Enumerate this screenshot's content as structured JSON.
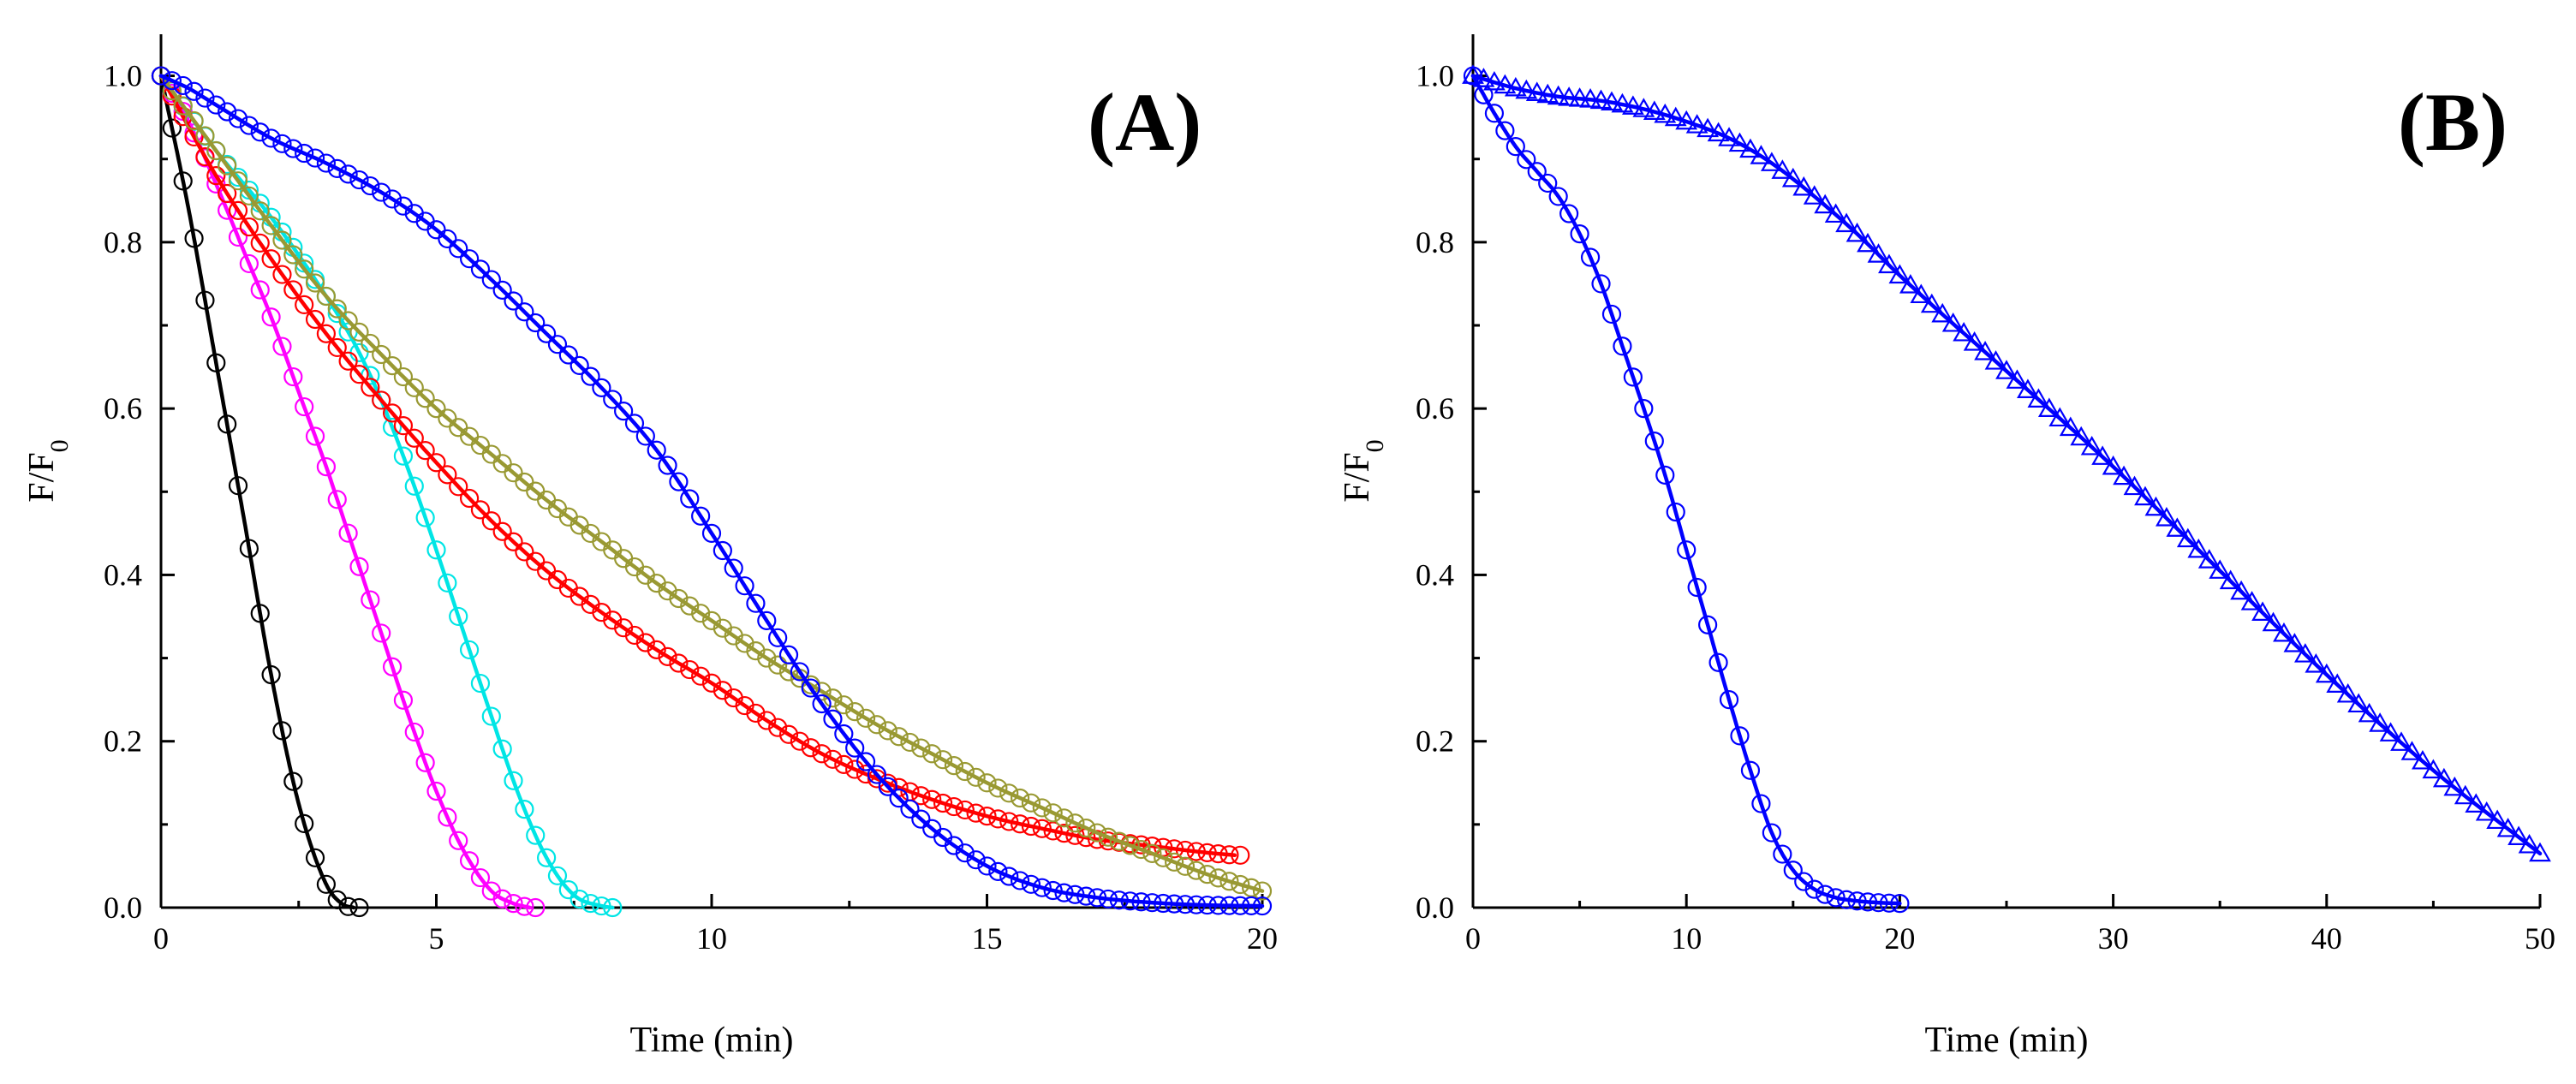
{
  "chart_data": [
    {
      "id": "A",
      "type": "scatter",
      "panel_label": "(A)",
      "title": "",
      "xlabel": "Time (min)",
      "ylabel": {
        "base": "F/F",
        "sub": "0"
      },
      "xlim": [
        0,
        20
      ],
      "ylim": [
        0,
        1.05
      ],
      "xticks": [
        0,
        5,
        10,
        15,
        20
      ],
      "yticks": [
        0.0,
        0.2,
        0.4,
        0.6,
        0.8,
        1.0
      ],
      "xtick_labels": [
        "0",
        "5",
        "10",
        "15",
        "20"
      ],
      "ytick_labels": [
        "0.0",
        "0.2",
        "0.4",
        "0.6",
        "0.8",
        "1.0"
      ],
      "grid": false,
      "legend": "none",
      "series": [
        {
          "name": "black",
          "color": "#000000",
          "marker": "circle",
          "step": 0.2,
          "x": [
            0,
            0.5,
            1,
            1.5,
            2,
            2.5,
            3,
            3.3,
            3.5
          ],
          "y": [
            1.0,
            0.84,
            0.655,
            0.47,
            0.28,
            0.125,
            0.028,
            0.004,
            0.0
          ]
        },
        {
          "name": "magenta",
          "color": "#ff00ff",
          "marker": "circle",
          "step": 0.2,
          "x": [
            0,
            0.5,
            1,
            1.5,
            2,
            2.5,
            3,
            3.5,
            4,
            4.5,
            5,
            5.5,
            6,
            6.4,
            6.7
          ],
          "y": [
            1.0,
            0.945,
            0.87,
            0.79,
            0.71,
            0.62,
            0.53,
            0.43,
            0.33,
            0.23,
            0.14,
            0.068,
            0.02,
            0.005,
            0.0
          ]
        },
        {
          "name": "cyan",
          "color": "#00e5e5",
          "marker": "circle",
          "step": 0.2,
          "x": [
            0,
            1,
            2,
            3,
            3.5,
            4,
            4.5,
            5,
            5.5,
            6,
            6.5,
            7,
            7.5,
            8,
            8.2
          ],
          "y": [
            1.0,
            0.91,
            0.83,
            0.735,
            0.68,
            0.61,
            0.525,
            0.43,
            0.33,
            0.23,
            0.135,
            0.06,
            0.015,
            0.002,
            0.0
          ]
        },
        {
          "name": "red",
          "color": "#ff0000",
          "marker": "circle",
          "step": 0.2,
          "x": [
            0,
            1,
            2,
            3,
            4,
            5,
            6,
            7,
            8,
            9,
            10,
            11,
            12,
            13,
            14,
            15,
            16,
            17,
            18,
            19,
            19.5
          ],
          "y": [
            1.0,
            0.88,
            0.78,
            0.69,
            0.61,
            0.535,
            0.465,
            0.405,
            0.355,
            0.31,
            0.27,
            0.225,
            0.185,
            0.155,
            0.13,
            0.11,
            0.095,
            0.082,
            0.074,
            0.066,
            0.063
          ]
        },
        {
          "name": "olive",
          "color": "#999933",
          "marker": "circle",
          "step": 0.2,
          "x": [
            0,
            1,
            2,
            3,
            4,
            5,
            6,
            7,
            8,
            9,
            10,
            11,
            12,
            13,
            14,
            15,
            16,
            17,
            18,
            19,
            20
          ],
          "y": [
            1.0,
            0.91,
            0.82,
            0.735,
            0.665,
            0.6,
            0.545,
            0.49,
            0.44,
            0.39,
            0.345,
            0.3,
            0.26,
            0.22,
            0.185,
            0.15,
            0.12,
            0.09,
            0.065,
            0.04,
            0.02
          ]
        },
        {
          "name": "blue",
          "color": "#0000ff",
          "marker": "circle",
          "step": 0.2,
          "x": [
            0,
            0.5,
            1,
            2,
            3,
            4,
            5,
            6,
            7,
            8,
            9,
            10,
            11,
            12,
            13,
            14,
            15,
            16,
            17,
            18,
            19,
            20
          ],
          "y": [
            1.0,
            0.985,
            0.965,
            0.925,
            0.895,
            0.86,
            0.815,
            0.755,
            0.69,
            0.625,
            0.55,
            0.45,
            0.345,
            0.245,
            0.16,
            0.095,
            0.05,
            0.024,
            0.012,
            0.006,
            0.003,
            0.002
          ]
        }
      ]
    },
    {
      "id": "B",
      "type": "scatter",
      "panel_label": "(B)",
      "title": "",
      "xlabel": "Time (min)",
      "ylabel": {
        "base": "F/F",
        "sub": "0"
      },
      "xlim": [
        0,
        50
      ],
      "ylim": [
        0,
        1.05
      ],
      "xticks": [
        0,
        10,
        20,
        30,
        40,
        50
      ],
      "yticks": [
        0.0,
        0.2,
        0.4,
        0.6,
        0.8,
        1.0
      ],
      "xtick_labels": [
        "0",
        "10",
        "20",
        "30",
        "40",
        "50"
      ],
      "ytick_labels": [
        "0.0",
        "0.2",
        "0.4",
        "0.6",
        "0.8",
        "1.0"
      ],
      "grid": false,
      "legend": "none",
      "series": [
        {
          "name": "circles",
          "color": "#0000ff",
          "marker": "circle",
          "step": 0.5,
          "x": [
            0,
            1,
            2,
            3,
            4,
            5,
            6,
            7,
            8,
            9,
            10,
            11,
            12,
            13,
            14,
            15,
            16,
            17,
            18,
            19,
            20
          ],
          "y": [
            1.0,
            0.955,
            0.915,
            0.885,
            0.855,
            0.81,
            0.75,
            0.675,
            0.6,
            0.52,
            0.43,
            0.34,
            0.25,
            0.165,
            0.09,
            0.045,
            0.022,
            0.012,
            0.008,
            0.006,
            0.005
          ]
        },
        {
          "name": "triangles",
          "color": "#0000ff",
          "marker": "triangle",
          "step": 0.5,
          "x": [
            0,
            2,
            4,
            6,
            8,
            10,
            12,
            14,
            16,
            18,
            20,
            25,
            30,
            35,
            40,
            45,
            50
          ],
          "y": [
            1.0,
            0.985,
            0.975,
            0.97,
            0.96,
            0.945,
            0.925,
            0.895,
            0.855,
            0.81,
            0.76,
            0.645,
            0.53,
            0.405,
            0.28,
            0.165,
            0.065
          ]
        }
      ]
    }
  ]
}
